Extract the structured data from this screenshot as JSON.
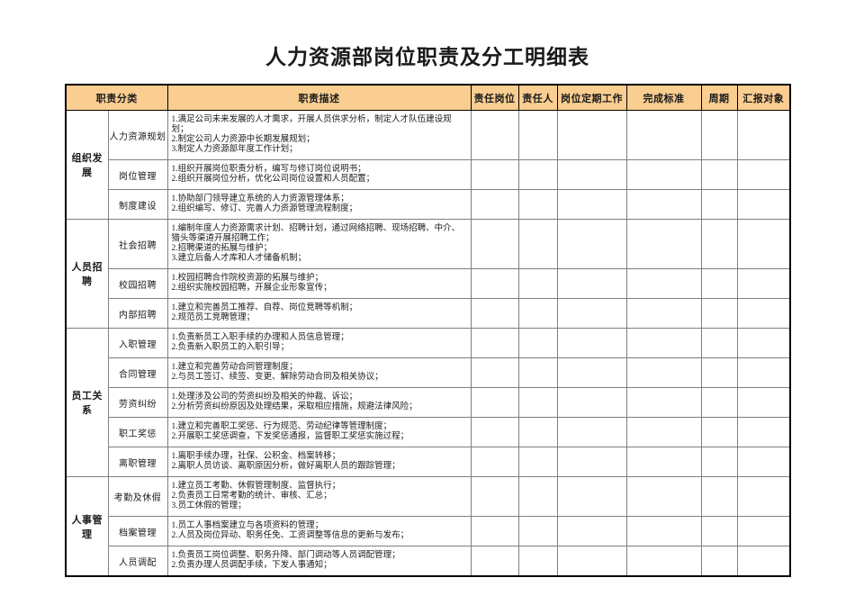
{
  "title": "人力资源部岗位职责及分工明细表",
  "colors": {
    "header_bg": "#FACD91",
    "grid_line": "#7F7F7F",
    "outer_border": "#000000"
  },
  "table": {
    "headers": [
      "职责分类",
      "职责描述",
      "责任岗位",
      "责任人",
      "岗位定期工作",
      "完成标准",
      "周期",
      "汇报对象"
    ],
    "groups": [
      {
        "name": "组织发展",
        "rows": [
          {
            "sub": "人力资源规划",
            "desc": [
              "1.满足公司未来发展的人才需求，开展人员供求分析，制定人才队伍建设规划；",
              "2.制定公司人力资源中长期发展规划；",
              "3.制定人力资源部年度工作计划；"
            ]
          },
          {
            "sub": "岗位管理",
            "desc": [
              "1.组织开展岗位职责分析，编写与修订岗位说明书；",
              "2.组织开展岗位分析，优化公司岗位设置和人员配置；"
            ]
          },
          {
            "sub": "制度建设",
            "desc": [
              "1.协助部门领导建立系统的人力资源管理体系；",
              "2.组织编写、修订、完善人力资源管理流程制度；"
            ]
          }
        ]
      },
      {
        "name": "人员招聘",
        "rows": [
          {
            "sub": "社会招聘",
            "desc": [
              "1.编制年度人力资源需求计划、招聘计划，通过网络招聘、现场招聘、中介、猎头等渠道开展招聘工作；",
              "2.招聘渠道的拓展与维护；",
              "3.建立后备人才库和人才储备机制；"
            ]
          },
          {
            "sub": "校园招聘",
            "desc": [
              "1.校园招聘合作院校资源的拓展与维护；",
              "2.组织实施校园招聘，开展企业形象宣传；"
            ]
          },
          {
            "sub": "内部招聘",
            "desc": [
              "1.建立和完善员工推荐、自荐、岗位竞聘等机制；",
              "2.规范员工竞聘管理；"
            ]
          }
        ]
      },
      {
        "name": "员工关系",
        "rows": [
          {
            "sub": "入职管理",
            "desc": [
              "1.负责新员工入职手续的办理和人员信息管理；",
              "2.负责新入职员工的入职引导；"
            ]
          },
          {
            "sub": "合同管理",
            "desc": [
              "1.建立和完善劳动合同管理制度；",
              "2.与员工签订、续签、变更、解除劳动合同及相关协议；"
            ]
          },
          {
            "sub": "劳资纠纷",
            "desc": [
              "1.处理涉及公司的劳资纠纷及相关的仲裁、诉讼；",
              "2.分析劳资纠纷原因及处理结果，采取相应措施，规避法律风险；"
            ]
          },
          {
            "sub": "职工奖惩",
            "desc": [
              "1.建立和完善职工奖惩、行为规范、劳动纪律等管理制度；",
              "2.开展职工奖惩调查，下发奖惩通报，监督职工奖惩实施过程；"
            ]
          },
          {
            "sub": "离职管理",
            "desc": [
              "1.离职手续办理，社保、公积金、档案转移；",
              "2.离职人员访谈、离职原因分析，做好离职人员的跟踪管理；"
            ]
          }
        ]
      },
      {
        "name": "人事管理",
        "rows": [
          {
            "sub": "考勤及休假",
            "desc": [
              "1.建立员工考勤、休假管理制度、监督执行；",
              "2.负责员工日常考勤的统计、审核、汇总；",
              "3.员工休假的管理；"
            ]
          },
          {
            "sub": "档案管理",
            "desc": [
              "1.员工人事档案建立与各项资料的管理；",
              "2.人员及岗位异动、职务任免、工资调整等信息的更新与发布；"
            ]
          },
          {
            "sub": "人员调配",
            "desc": [
              "1.负责员工岗位调整、职务升降、部门调动等人员调配管理；",
              "2.负责办理人员调配手续，下发人事通知；"
            ]
          }
        ]
      }
    ]
  }
}
